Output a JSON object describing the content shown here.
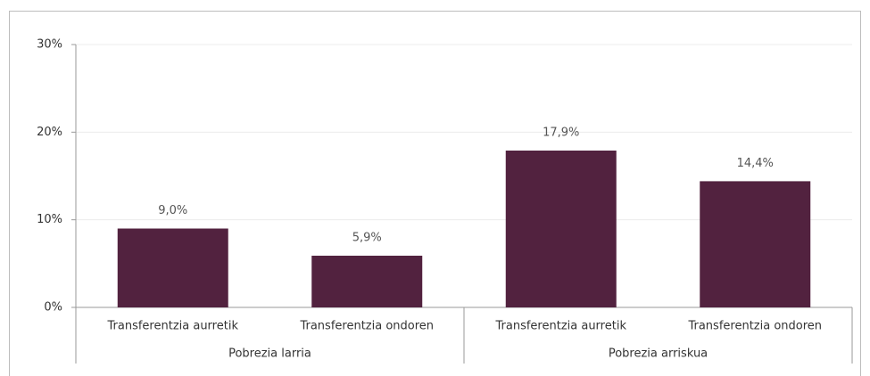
{
  "chart_data": {
    "type": "bar",
    "categories": [
      "Transferentzia aurretik",
      "Transferentzia ondoren",
      "Transferentzia aurretik",
      "Transferentzia ondoren"
    ],
    "groups": [
      "Pobrezia larria",
      "Pobrezia arriskua"
    ],
    "values": [
      9.0,
      5.9,
      17.9,
      14.4
    ],
    "value_labels": [
      "9,0%",
      "5,9%",
      "17,9%",
      "14,4%"
    ],
    "color": "#52223f",
    "ylim": [
      0,
      30
    ],
    "yticks": [
      {
        "value": 0,
        "label": "0%"
      },
      {
        "value": 10,
        "label": "10%"
      },
      {
        "value": 20,
        "label": "20%"
      },
      {
        "value": 30,
        "label": "30%"
      }
    ],
    "grid": true
  }
}
